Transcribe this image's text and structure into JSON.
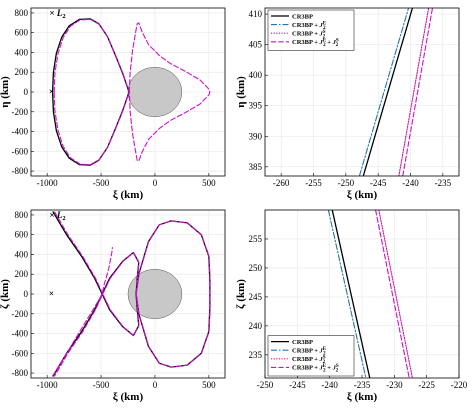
{
  "l2_marker": "×",
  "colors": {
    "cr3bp": "#000000",
    "j2e": "#2277aa",
    "j2s": "#cc1199",
    "j2es": "#cc11cc",
    "moon_fill": "#c8c8c8",
    "grid": "#e6e6e6"
  },
  "chart_data": [
    {
      "type": "line",
      "panel": "top-left",
      "xlabel": "ξ (km)",
      "ylabel": "η (km)",
      "xlim": [
        -1150,
        650
      ],
      "ylim": [
        -850,
        850
      ],
      "xticks": [
        -1000,
        -500,
        0,
        500
      ],
      "yticks": [
        -800,
        -600,
        -400,
        -200,
        0,
        200,
        400,
        600,
        800
      ],
      "grid": true,
      "annotation": "L",
      "annotation_sub": "2",
      "l2_point": [
        -960,
        800
      ],
      "l2_center": [
        -960,
        0
      ],
      "moon": {
        "center": [
          0,
          0
        ],
        "radius": 250
      },
      "series": [
        {
          "style": "cr3bp",
          "points": [
            [
              -950,
              0
            ],
            [
              -942,
              200
            ],
            [
              -915,
              390
            ],
            [
              -865,
              555
            ],
            [
              -795,
              670
            ],
            [
              -700,
              735
            ],
            [
              -600,
              740
            ],
            [
              -520,
              690
            ],
            [
              -440,
              560
            ],
            [
              -370,
              380
            ],
            [
              -300,
              190
            ],
            [
              -240,
              0
            ],
            [
              -300,
              -190
            ],
            [
              -370,
              -380
            ],
            [
              -440,
              -560
            ],
            [
              -520,
              -690
            ],
            [
              -600,
              -740
            ],
            [
              -700,
              -735
            ],
            [
              -795,
              -670
            ],
            [
              -865,
              -555
            ],
            [
              -915,
              -390
            ],
            [
              -942,
              -200
            ],
            [
              -950,
              0
            ]
          ]
        },
        {
          "style": "j2es",
          "points": [
            [
              -935,
              0
            ],
            [
              -928,
              195
            ],
            [
              -900,
              385
            ],
            [
              -852,
              550
            ],
            [
              -785,
              665
            ],
            [
              -695,
              730
            ],
            [
              -598,
              735
            ],
            [
              -518,
              685
            ],
            [
              -440,
              560
            ],
            [
              -368,
              380
            ],
            [
              -298,
              190
            ],
            [
              -238,
              0
            ],
            [
              -298,
              -190
            ],
            [
              -368,
              -380
            ],
            [
              -440,
              -560
            ],
            [
              -518,
              -685
            ],
            [
              -598,
              -735
            ],
            [
              -695,
              -730
            ],
            [
              -785,
              -665
            ],
            [
              -852,
              -550
            ],
            [
              -900,
              -385
            ],
            [
              -928,
              -195
            ],
            [
              -935,
              0
            ]
          ]
        },
        {
          "style": "j2es",
          "points": [
            [
              -238,
              0
            ],
            [
              -230,
              200
            ],
            [
              -208,
              420
            ],
            [
              -180,
              600
            ],
            [
              -165,
              690
            ],
            [
              -150,
              700
            ],
            [
              -120,
              610
            ],
            [
              -60,
              480
            ],
            [
              40,
              370
            ],
            [
              140,
              290
            ],
            [
              280,
              210
            ],
            [
              420,
              120
            ],
            [
              500,
              30
            ],
            [
              510,
              0
            ],
            [
              500,
              -30
            ],
            [
              420,
              -120
            ],
            [
              280,
              -210
            ],
            [
              140,
              -290
            ],
            [
              40,
              -370
            ],
            [
              -60,
              -480
            ],
            [
              -120,
              -610
            ],
            [
              -150,
              -700
            ],
            [
              -165,
              -690
            ],
            [
              -180,
              -600
            ],
            [
              -208,
              -420
            ],
            [
              -230,
              -200
            ],
            [
              -238,
              0
            ]
          ]
        }
      ]
    },
    {
      "type": "line",
      "panel": "top-right",
      "xlabel": "ξ (km)",
      "ylabel": "η (km)",
      "xlim": [
        -262.5,
        -232.5
      ],
      "ylim": [
        383.5,
        411
      ],
      "xticks": [
        -260,
        -255,
        -250,
        -245,
        -240,
        -235
      ],
      "yticks": [
        385,
        390,
        395,
        400,
        405,
        410
      ],
      "grid": true,
      "legend": "top-left",
      "series": [
        {
          "name": "CR3BP",
          "style": "cr3bp",
          "points": [
            [
              -247.3,
              383.5
            ],
            [
              -239.7,
              411
            ]
          ]
        },
        {
          "name": "CR3BP + J2E",
          "label_main": "CR3BP + ",
          "label_j": "J",
          "label_sub": "2",
          "label_sup": "E",
          "style": "j2e",
          "points": [
            [
              -247.9,
              383.5
            ],
            [
              -240.3,
              411
            ]
          ]
        },
        {
          "name": "CR3BP + J2S",
          "label_main": "CR3BP + ",
          "label_j": "J",
          "label_sub": "2",
          "label_sup": "S",
          "style": "j2s",
          "points": [
            [
              -241.8,
              383.5
            ],
            [
              -237.2,
              411
            ]
          ]
        },
        {
          "name": "CR3BP + J2E + J2S",
          "label_main": "CR3BP + ",
          "label_j": "J",
          "label_sub": "2",
          "label_sup": "E",
          "label_plus": " + ",
          "label_j2": "J",
          "label_sub2": "2",
          "label_sup2": "S",
          "style": "j2es",
          "points": [
            [
              -241.2,
              383.5
            ],
            [
              -236.6,
              411
            ]
          ]
        }
      ]
    },
    {
      "type": "line",
      "panel": "bottom-left",
      "xlabel": "ξ (km)",
      "ylabel": "ζ (km)",
      "xlim": [
        -1150,
        650
      ],
      "ylim": [
        -850,
        850
      ],
      "xticks": [
        -1000,
        -500,
        0,
        500
      ],
      "yticks": [
        -800,
        -600,
        -400,
        -200,
        0,
        200,
        400,
        600,
        800
      ],
      "grid": true,
      "annotation": "L",
      "annotation_sub": "2",
      "l2_point": [
        -960,
        800
      ],
      "l2_center": [
        -960,
        0
      ],
      "moon": {
        "center": [
          0,
          0
        ],
        "radius": 250
      },
      "series": [
        {
          "style": "cr3bp",
          "points": [
            [
              -945,
              830
            ],
            [
              -820,
              600
            ],
            [
              -680,
              380
            ],
            [
              -560,
              160
            ],
            [
              -490,
              0
            ],
            [
              -420,
              -160
            ],
            [
              -300,
              -330
            ],
            [
              -200,
              -420
            ],
            [
              -150,
              -320
            ],
            [
              -165,
              -150
            ],
            [
              -175,
              0
            ],
            [
              -150,
              200
            ],
            [
              -60,
              530
            ],
            [
              40,
              700
            ],
            [
              150,
              740
            ],
            [
              300,
              720
            ],
            [
              430,
              600
            ],
            [
              500,
              380
            ],
            [
              510,
              130
            ],
            [
              510,
              0
            ],
            [
              510,
              -130
            ],
            [
              500,
              -380
            ],
            [
              430,
              -600
            ],
            [
              300,
              -720
            ],
            [
              150,
              -740
            ],
            [
              40,
              -700
            ],
            [
              -60,
              -530
            ],
            [
              -150,
              -200
            ],
            [
              -175,
              0
            ],
            [
              -165,
              150
            ],
            [
              -150,
              320
            ],
            [
              -200,
              420
            ],
            [
              -300,
              330
            ],
            [
              -420,
              160
            ],
            [
              -490,
              0
            ],
            [
              -560,
              -160
            ],
            [
              -680,
              -380
            ],
            [
              -820,
              -600
            ],
            [
              -945,
              -830
            ]
          ]
        },
        {
          "style": "j2es",
          "points": [
            [
              -930,
              830
            ],
            [
              -808,
              600
            ],
            [
              -670,
              380
            ],
            [
              -552,
              160
            ],
            [
              -484,
              0
            ],
            [
              -414,
              -160
            ],
            [
              -296,
              -330
            ],
            [
              -198,
              -420
            ],
            [
              -148,
              -320
            ],
            [
              -163,
              -150
            ],
            [
              -173,
              0
            ],
            [
              -148,
              200
            ],
            [
              -58,
              530
            ],
            [
              42,
              700
            ],
            [
              152,
              740
            ],
            [
              302,
              720
            ],
            [
              432,
              600
            ],
            [
              502,
              380
            ],
            [
              512,
              130
            ],
            [
              512,
              0
            ],
            [
              512,
              -130
            ],
            [
              502,
              -380
            ],
            [
              432,
              -600
            ],
            [
              302,
              -720
            ],
            [
              152,
              -740
            ],
            [
              42,
              -700
            ],
            [
              -58,
              -530
            ],
            [
              -148,
              -200
            ],
            [
              -173,
              0
            ],
            [
              -163,
              150
            ],
            [
              -148,
              320
            ],
            [
              -198,
              420
            ],
            [
              -296,
              330
            ],
            [
              -414,
              160
            ],
            [
              -484,
              0
            ],
            [
              -552,
              -160
            ],
            [
              -670,
              -380
            ],
            [
              -808,
              -600
            ],
            [
              -930,
              -830
            ]
          ]
        },
        {
          "style": "j2es",
          "points": [
            [
              -950,
              -830
            ],
            [
              -830,
              -620
            ],
            [
              -720,
              -420
            ],
            [
              -620,
              -240
            ],
            [
              -520,
              -60
            ],
            [
              -490,
              0
            ],
            [
              -470,
              100
            ],
            [
              -430,
              250
            ],
            [
              -400,
              420
            ],
            [
              -395,
              470
            ]
          ]
        }
      ]
    },
    {
      "type": "line",
      "panel": "bottom-right",
      "xlabel": "ξ (km)",
      "ylabel": "ζ (km)",
      "xlim": [
        -250,
        -220
      ],
      "ylim": [
        231,
        260
      ],
      "xticks": [
        -250,
        -245,
        -240,
        -235,
        -230,
        -225,
        -220
      ],
      "yticks": [
        235,
        240,
        245,
        250,
        255
      ],
      "grid": true,
      "legend": "bottom-left",
      "series": [
        {
          "name": "CR3BP",
          "style": "cr3bp",
          "points": [
            [
              -239.6,
              260
            ],
            [
              -233.8,
              231
            ]
          ]
        },
        {
          "name": "CR3BP + J2E",
          "label_main": "CR3BP + ",
          "label_j": "J",
          "label_sub": "2",
          "label_sup": "E",
          "style": "j2e",
          "points": [
            [
              -240.2,
              260
            ],
            [
              -234.4,
              231
            ]
          ]
        },
        {
          "name": "CR3BP + J2S",
          "label_main": "CR3BP + ",
          "label_j": "J",
          "label_sub": "2",
          "label_sup": "S",
          "style": "j2s",
          "points": [
            [
              -232.4,
              260
            ],
            [
              -227.2,
              231
            ]
          ]
        },
        {
          "name": "CR3BP + J2E + J2S",
          "label_main": "CR3BP + ",
          "label_j": "J",
          "label_sub": "2",
          "label_sup": "E",
          "label_plus": " + ",
          "label_j2": "J",
          "label_sub2": "2",
          "label_sup2": "S",
          "style": "j2es",
          "points": [
            [
              -232.9,
              260
            ],
            [
              -227.7,
              231
            ]
          ]
        }
      ]
    }
  ]
}
